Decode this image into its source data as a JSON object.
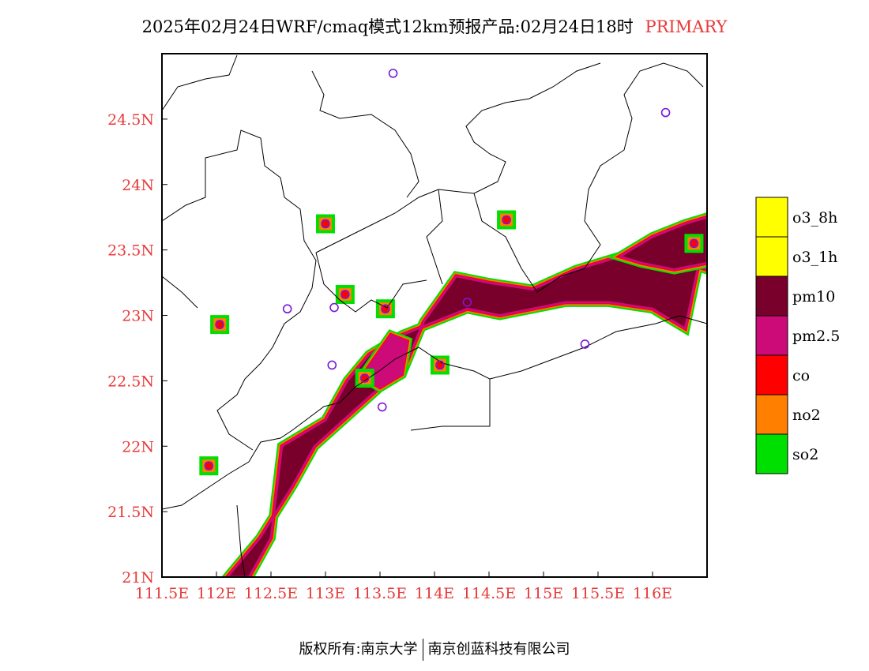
{
  "title": {
    "main": "2025年02月24日WRF/cmaq模式12km预报产品:02月24日18时",
    "tag": "PRIMARY"
  },
  "map": {
    "lon_range": [
      111.5,
      116.5
    ],
    "lat_range": [
      21.0,
      25.0
    ],
    "lon_ticks": [
      "111.5E",
      "112E",
      "112.5E",
      "113E",
      "113.5E",
      "114E",
      "114.5E",
      "115E",
      "115.5E",
      "116E"
    ],
    "lat_ticks": [
      "21N",
      "21.5N",
      "22N",
      "22.5N",
      "23N",
      "23.5N",
      "24N",
      "24.5N"
    ],
    "tick_color": "#e83a3a"
  },
  "legend": [
    {
      "label": "o3_8h",
      "color": "#ffff00"
    },
    {
      "label": "o3_1h",
      "color": "#ffff00"
    },
    {
      "label": "pm10",
      "color": "#78002a"
    },
    {
      "label": "pm2.5",
      "color": "#cc0a78"
    },
    {
      "label": "co",
      "color": "#ff0000"
    },
    {
      "label": "no2",
      "color": "#ff7f00"
    },
    {
      "label": "so2",
      "color": "#00e000"
    }
  ],
  "pollutant_regions": [
    {
      "name": "coastal-band-pm10",
      "pollutant": "pm10",
      "lon": [
        112.6,
        113.0,
        113.2,
        113.4,
        113.7,
        114.0,
        114.3,
        114.6,
        114.9,
        115.2,
        115.6,
        116.0,
        116.3,
        116.4,
        116.5,
        116.5,
        116.1,
        115.7,
        115.3,
        114.9,
        114.5,
        114.2,
        113.9,
        113.7,
        113.5,
        113.3,
        113.1,
        112.9,
        112.7,
        112.4,
        112.1,
        112.3,
        112.5
      ],
      "lat": [
        22.0,
        22.2,
        22.5,
        22.7,
        22.85,
        22.95,
        23.05,
        23.0,
        23.05,
        23.1,
        23.1,
        23.05,
        22.9,
        23.3,
        23.7,
        23.35,
        23.45,
        23.45,
        23.35,
        23.2,
        23.25,
        23.3,
        22.95,
        22.55,
        22.45,
        22.3,
        22.15,
        22.0,
        21.7,
        21.3,
        21.0,
        21.0,
        21.3
      ]
    },
    {
      "name": "prd-pm25",
      "pollutant": "pm2.5",
      "lon": [
        113.35,
        113.6,
        113.75,
        113.7,
        113.5,
        113.4
      ],
      "lat": [
        22.55,
        22.85,
        22.8,
        22.55,
        22.45,
        22.5
      ]
    },
    {
      "name": "northeast-pm10",
      "pollutant": "pm10",
      "lon": [
        115.7,
        116.0,
        116.3,
        116.5,
        116.5,
        116.2,
        115.9,
        115.7
      ],
      "lat": [
        23.45,
        23.6,
        23.7,
        23.75,
        23.4,
        23.35,
        23.4,
        23.45
      ]
    }
  ],
  "station_markers": [
    {
      "lon": 113.0,
      "lat": 23.7
    },
    {
      "lon": 112.65,
      "lat": 23.05
    },
    {
      "lon": 112.03,
      "lat": 22.93
    },
    {
      "lon": 113.08,
      "lat": 23.06
    },
    {
      "lon": 113.18,
      "lat": 23.16
    },
    {
      "lon": 113.62,
      "lat": 24.85
    },
    {
      "lon": 113.55,
      "lat": 23.05
    },
    {
      "lon": 114.3,
      "lat": 23.1
    },
    {
      "lon": 114.66,
      "lat": 23.73
    },
    {
      "lon": 113.06,
      "lat": 22.62
    },
    {
      "lon": 113.36,
      "lat": 22.52
    },
    {
      "lon": 113.52,
      "lat": 22.3
    },
    {
      "lon": 114.05,
      "lat": 22.62
    },
    {
      "lon": 115.38,
      "lat": 22.78
    },
    {
      "lon": 116.38,
      "lat": 23.55
    },
    {
      "lon": 116.12,
      "lat": 24.55
    },
    {
      "lon": 111.93,
      "lat": 21.85
    }
  ],
  "footer": {
    "left": "版权所有:南京大学",
    "right": "南京创蓝科技有限公司"
  }
}
